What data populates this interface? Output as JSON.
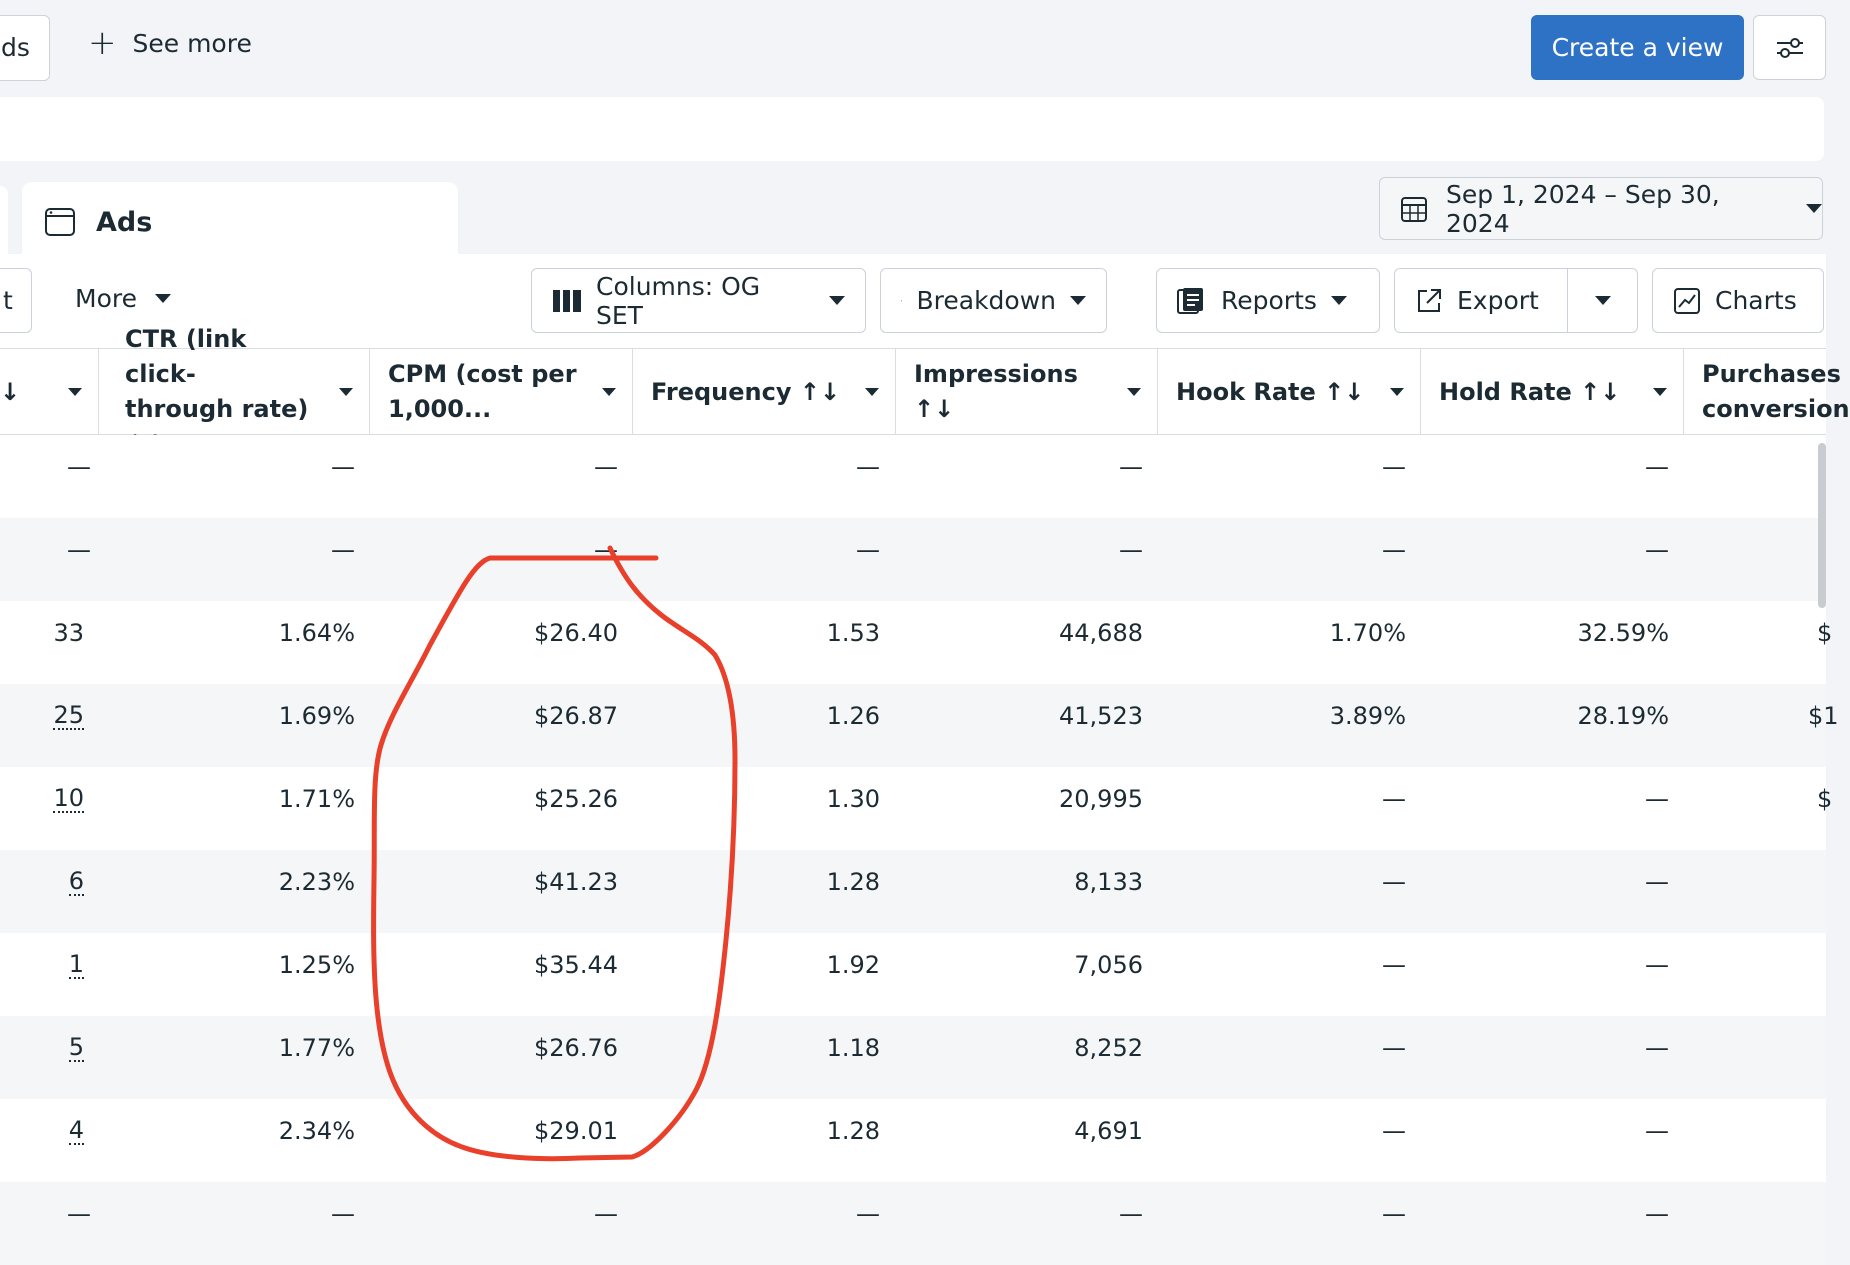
{
  "header": {
    "ads_tab_stub": "ds",
    "see_more": "See more",
    "create_view": "Create a view"
  },
  "level_tab": {
    "label": "Ads"
  },
  "date_range": "Sep 1, 2024 – Sep 30, 2024",
  "toolbar": {
    "left_stub": "t",
    "more": "More",
    "columns": "Columns: OG SET",
    "breakdown": "Breakdown",
    "reports": "Reports",
    "export": "Export",
    "charts": "Charts"
  },
  "columns": {
    "col0": "↓",
    "ctr": [
      "CTR (link click-",
      "through rate) ↑↓"
    ],
    "cpm": [
      "CPM (cost per",
      "1,000..."
    ],
    "frequency": "Frequency ↑↓",
    "impressions": "Impressions ↑↓",
    "hook_rate": "Hook Rate ↑↓",
    "hold_rate": "Hold Rate ↑↓",
    "purchases": [
      "Purchases",
      "conversion"
    ]
  },
  "rows": [
    {
      "c0": "—",
      "ctr": "—",
      "cpm": "—",
      "freq": "—",
      "imp": "—",
      "hook": "—",
      "hold": "—",
      "purch": ""
    },
    {
      "c0": "—",
      "ctr": "—",
      "cpm": "—",
      "freq": "—",
      "imp": "—",
      "hook": "—",
      "hold": "—",
      "purch": ""
    },
    {
      "c0": "33",
      "ctr": "1.64%",
      "cpm": "$26.40",
      "freq": "1.53",
      "imp": "44,688",
      "hook": "1.70%",
      "hold": "32.59%",
      "purch": "$"
    },
    {
      "c0": "25",
      "ctr": "1.69%",
      "cpm": "$26.87",
      "freq": "1.26",
      "imp": "41,523",
      "hook": "3.89%",
      "hold": "28.19%",
      "purch": "$1"
    },
    {
      "c0": "10",
      "ctr": "1.71%",
      "cpm": "$25.26",
      "freq": "1.30",
      "imp": "20,995",
      "hook": "—",
      "hold": "—",
      "purch": "$"
    },
    {
      "c0": "6",
      "ctr": "2.23%",
      "cpm": "$41.23",
      "freq": "1.28",
      "imp": "8,133",
      "hook": "—",
      "hold": "—",
      "purch": ""
    },
    {
      "c0": "1",
      "ctr": "1.25%",
      "cpm": "$35.44",
      "freq": "1.92",
      "imp": "7,056",
      "hook": "—",
      "hold": "—",
      "purch": ""
    },
    {
      "c0": "5",
      "ctr": "1.77%",
      "cpm": "$26.76",
      "freq": "1.18",
      "imp": "8,252",
      "hook": "—",
      "hold": "—",
      "purch": ""
    },
    {
      "c0": "4",
      "ctr": "2.34%",
      "cpm": "$29.01",
      "freq": "1.28",
      "imp": "4,691",
      "hook": "—",
      "hold": "—",
      "purch": ""
    },
    {
      "c0": "—",
      "ctr": "—",
      "cpm": "—",
      "freq": "—",
      "imp": "—",
      "hook": "—",
      "hold": "—",
      "purch": ""
    }
  ],
  "colors": {
    "primary_button": "#2e72c6",
    "annotation": "#e8402a"
  }
}
